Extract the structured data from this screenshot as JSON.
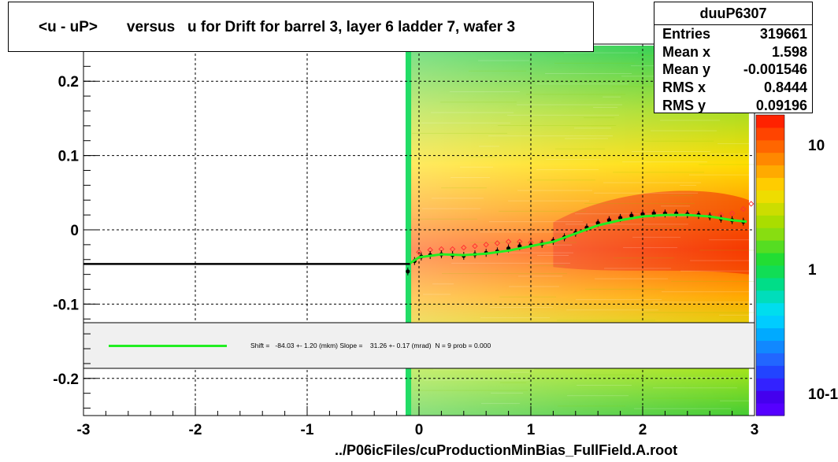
{
  "title": "<u - uP>       versus   u for Drift for barrel 3, layer 6 ladder 7, wafer 3",
  "footer": "../P06icFiles/cuProductionMinBias_FullField.A.root",
  "stats": {
    "name": "duuP6307",
    "rows": [
      {
        "label": "Entries",
        "value": "319661"
      },
      {
        "label": "Mean x",
        "value": "1.598"
      },
      {
        "label": "Mean y",
        "value": "-0.001546"
      },
      {
        "label": "RMS x",
        "value": "0.8444"
      },
      {
        "label": "RMS y",
        "value": "0.09196"
      }
    ]
  },
  "legend_text": "Shift =   -84.03 +- 1.20 (mkm) Slope =    31.26 +- 0.17 (mrad)  N = 9 prob = 0.000",
  "colors": {
    "fit": "#22ee22",
    "profile": "#000000",
    "mean_markers": "#ff3333"
  },
  "chart_data": {
    "type": "heatmap",
    "title": "<u - uP>       versus   u for Drift for barrel 3, layer 6 ladder 7, wafer 3",
    "xlim": [
      -3,
      3
    ],
    "ylim": [
      -0.25,
      0.25
    ],
    "x_ticks": [
      "-3",
      "-2",
      "-1",
      "0",
      "1",
      "2",
      "3"
    ],
    "y_ticks": [
      "-0.2",
      "-0.1",
      "0",
      "0.1",
      "0.2"
    ],
    "z_scale": "log",
    "z_ticks": [
      "10",
      "1",
      "10-1"
    ],
    "grid": true,
    "fit_line": {
      "x": [
        -0.08,
        0.0,
        0.2,
        0.4,
        0.6,
        0.8,
        1.0,
        1.2,
        1.4,
        1.6,
        1.8,
        2.0,
        2.2,
        2.4,
        2.6,
        2.8,
        2.93
      ],
      "y": [
        -0.045,
        -0.037,
        -0.033,
        -0.034,
        -0.032,
        -0.028,
        -0.022,
        -0.016,
        -0.005,
        0.006,
        0.013,
        0.018,
        0.02,
        0.02,
        0.018,
        0.013,
        0.011
      ]
    },
    "profile_points": {
      "x": [
        -0.1,
        -0.04,
        0.02,
        0.1,
        0.2,
        0.3,
        0.4,
        0.5,
        0.6,
        0.7,
        0.8,
        0.9,
        1.0,
        1.1,
        1.2,
        1.3,
        1.4,
        1.5,
        1.6,
        1.7,
        1.8,
        1.9,
        2.0,
        2.1,
        2.2,
        2.3,
        2.4,
        2.5,
        2.6,
        2.7,
        2.8,
        2.9
      ],
      "y": [
        -0.056,
        -0.042,
        -0.036,
        -0.034,
        -0.033,
        -0.034,
        -0.035,
        -0.033,
        -0.031,
        -0.029,
        -0.025,
        -0.022,
        -0.021,
        -0.019,
        -0.015,
        -0.01,
        -0.004,
        0.003,
        0.009,
        0.013,
        0.016,
        0.019,
        0.021,
        0.022,
        0.022,
        0.022,
        0.021,
        0.02,
        0.018,
        0.015,
        0.013,
        0.011
      ]
    },
    "left_extension": {
      "x": [
        -3,
        -0.08
      ],
      "y": -0.046
    },
    "mean_points": {
      "x": [
        0.0,
        0.1,
        0.2,
        0.3,
        0.4,
        0.5,
        0.6,
        0.7,
        0.8,
        0.9,
        1.0,
        1.1,
        1.2,
        1.3,
        1.4,
        1.5,
        1.6,
        1.7,
        1.8,
        1.9,
        2.0,
        2.1,
        2.2,
        2.3,
        2.4,
        2.5,
        2.6,
        2.7,
        2.8,
        2.9,
        2.97
      ],
      "y": [
        -0.03,
        -0.027,
        -0.026,
        -0.026,
        -0.024,
        -0.022,
        -0.02,
        -0.018,
        -0.016,
        -0.016,
        -0.017,
        -0.017,
        -0.014,
        -0.01,
        -0.004,
        0.003,
        0.01,
        0.014,
        0.017,
        0.02,
        0.022,
        0.023,
        0.023,
        0.023,
        0.022,
        0.021,
        0.02,
        0.02,
        0.022,
        0.028,
        0.035
      ]
    }
  }
}
